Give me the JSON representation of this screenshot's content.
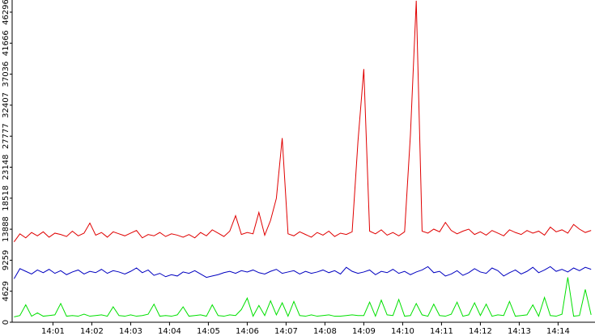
{
  "chart_data": {
    "type": "line",
    "x": [
      0,
      0.15,
      0.3,
      0.45,
      0.6,
      0.75,
      0.9,
      1.05,
      1.2,
      1.35,
      1.5,
      1.65,
      1.8,
      1.95,
      2.1,
      2.25,
      2.4,
      2.55,
      2.7,
      2.85,
      3,
      3.15,
      3.3,
      3.45,
      3.6,
      3.75,
      3.9,
      4.05,
      4.2,
      4.35,
      4.5,
      4.65,
      4.8,
      4.95,
      5.1,
      5.25,
      5.4,
      5.55,
      5.7,
      5.85,
      6,
      6.15,
      6.3,
      6.45,
      6.6,
      6.75,
      6.9,
      7.05,
      7.2,
      7.35,
      7.5,
      7.65,
      7.8,
      7.95,
      8.1,
      8.25,
      8.4,
      8.55,
      8.7,
      8.85,
      9,
      9.15,
      9.3,
      9.45,
      9.6,
      9.75,
      9.9,
      10.05,
      10.2,
      10.35,
      10.5,
      10.65,
      10.8,
      10.95,
      11.1,
      11.25,
      11.4,
      11.55,
      11.7,
      11.85,
      12,
      12.15,
      12.3,
      12.45,
      12.6,
      12.75,
      12.9,
      13.05,
      13.2,
      13.35,
      13.5,
      13.65,
      13.8,
      13.95,
      14.1,
      14.25,
      14.4,
      14.55,
      14.7,
      14.85
    ],
    "series": [
      {
        "color": "#e00000",
        "values": [
          12000,
          13200,
          12600,
          13400,
          12900,
          13500,
          12700,
          13300,
          13100,
          12800,
          13600,
          12900,
          13300,
          14800,
          13000,
          13400,
          12700,
          13500,
          13200,
          12900,
          13300,
          13700,
          12600,
          13100,
          12900,
          13400,
          12800,
          13200,
          13000,
          12700,
          13100,
          12600,
          13400,
          12900,
          13800,
          13300,
          12800,
          13600,
          15900,
          13100,
          13400,
          13200,
          16400,
          13000,
          15200,
          18500,
          27500,
          13200,
          12900,
          13500,
          13100,
          12700,
          13400,
          13000,
          13600,
          12800,
          13300,
          13100,
          13500,
          27000,
          37800,
          13600,
          13200,
          13800,
          13000,
          13400,
          12900,
          13500,
          28000,
          48000,
          13600,
          13300,
          13900,
          13500,
          14900,
          13700,
          13200,
          13600,
          13900,
          13100,
          13500,
          13000,
          13700,
          13300,
          12900,
          13800,
          13400,
          13100,
          13700,
          13300,
          13600,
          13000,
          14200,
          13500,
          13800,
          13300,
          14600,
          13900,
          13400,
          13700
        ]
      },
      {
        "color": "#0000c0",
        "values": [
          6500,
          8000,
          7600,
          7200,
          7800,
          7400,
          7900,
          7300,
          7700,
          7100,
          7500,
          7800,
          7200,
          7600,
          7400,
          7900,
          7300,
          7700,
          7500,
          7200,
          7600,
          8100,
          7400,
          7800,
          7000,
          7300,
          6800,
          7100,
          6900,
          7500,
          7300,
          7700,
          7200,
          6700,
          6900,
          7100,
          7400,
          7600,
          7300,
          7700,
          7500,
          7800,
          7400,
          7200,
          7600,
          7900,
          7300,
          7500,
          7700,
          7200,
          7600,
          7300,
          7500,
          7800,
          7400,
          7700,
          7200,
          8200,
          7600,
          7300,
          7500,
          7800,
          7100,
          7600,
          7400,
          7900,
          7300,
          7600,
          7100,
          7500,
          7800,
          8300,
          7400,
          7600,
          6900,
          7200,
          7700,
          7000,
          7400,
          8000,
          7500,
          7300,
          8100,
          7700,
          6900,
          7400,
          7800,
          7200,
          7600,
          8200,
          7400,
          7800,
          8300,
          7600,
          7900,
          7500,
          8100,
          7700,
          8200,
          7900
        ]
      },
      {
        "color": "#00e000",
        "values": [
          800,
          1000,
          2600,
          900,
          1400,
          900,
          1000,
          1100,
          2800,
          900,
          1000,
          900,
          1200,
          900,
          1000,
          1100,
          900,
          2300,
          1000,
          900,
          1100,
          900,
          1000,
          1200,
          2700,
          900,
          1000,
          900,
          1100,
          2300,
          900,
          1000,
          1100,
          900,
          2600,
          1000,
          900,
          1100,
          1000,
          1900,
          3600,
          900,
          2500,
          1000,
          3200,
          1100,
          2900,
          900,
          3100,
          1000,
          900,
          1100,
          900,
          1000,
          1100,
          900,
          900,
          1000,
          1100,
          1000,
          1000,
          3000,
          900,
          3300,
          1100,
          1000,
          3400,
          900,
          1000,
          2800,
          1100,
          900,
          2700,
          1000,
          900,
          1200,
          3000,
          900,
          1100,
          2900,
          1000,
          2700,
          900,
          1100,
          1000,
          3100,
          900,
          1000,
          1100,
          2600,
          900,
          3700,
          1000,
          900,
          1200,
          6700,
          900,
          1000,
          4900,
          1100
        ]
      }
    ],
    "xlim": [
      -0.05,
      14.95
    ],
    "xticks": [
      {
        "value": 1,
        "label": "14:01"
      },
      {
        "value": 2,
        "label": "14:02"
      },
      {
        "value": 3,
        "label": "14:03"
      },
      {
        "value": 4,
        "label": "14:04"
      },
      {
        "value": 5,
        "label": "14:05"
      },
      {
        "value": 6,
        "label": "14:06"
      },
      {
        "value": 7,
        "label": "14:07"
      },
      {
        "value": 8,
        "label": "14:08"
      },
      {
        "value": 9,
        "label": "14:09"
      },
      {
        "value": 10,
        "label": "14:10"
      },
      {
        "value": 11,
        "label": "14:11"
      },
      {
        "value": 12,
        "label": "14:12"
      },
      {
        "value": 13,
        "label": "14:13"
      },
      {
        "value": 14,
        "label": "14:14"
      }
    ],
    "ylim": [
      0,
      48110
    ],
    "yticks": [
      0,
      4629,
      9259,
      13888,
      18518,
      23148,
      27777,
      32407,
      37036,
      41666,
      46296
    ]
  }
}
